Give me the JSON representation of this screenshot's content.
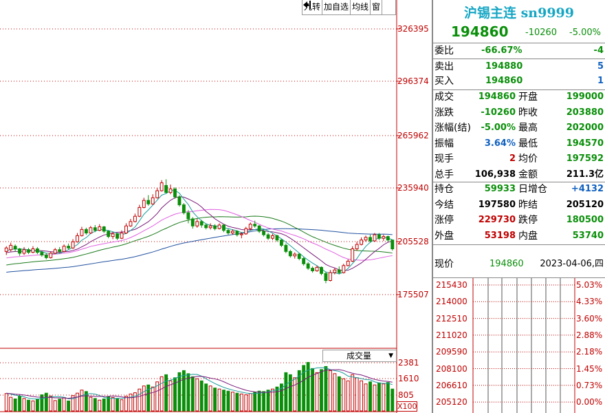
{
  "toolbar": {
    "items": [
      "九转",
      "加自选",
      "均线",
      "窗"
    ],
    "exit_icon": "exit-arrow-icon"
  },
  "price_axis": {
    "labels": [
      "326395",
      "296374",
      "265962",
      "235940",
      "205528",
      "175507"
    ]
  },
  "volume": {
    "selector_label": "成交量",
    "axis_labels": [
      "2381",
      "1610",
      "805"
    ],
    "multiplier": "X100"
  },
  "colors": {
    "up": "#c00000",
    "down": "#0a8f0a",
    "ma5": "#1a9a9a",
    "ma10": "#7a1a7a",
    "ma20": "#e060e0",
    "ma30": "#1a7a1a",
    "ma60": "#2050a0"
  },
  "quote": {
    "title": "沪锡主连 sn9999",
    "price": "194860",
    "change": "-10260",
    "change_pct": "-5.00%",
    "weibi_label": "委比",
    "weibi_pct": "-66.67%",
    "weibi_val": "-4",
    "sell_label": "卖出",
    "sell_price": "194880",
    "sell_vol": "5",
    "buy_label": "买入",
    "buy_price": "194860",
    "buy_vol": "1",
    "rows": [
      {
        "l1": "成交",
        "v1": "194860",
        "l2": "开盘",
        "v2": "199000",
        "c1": "g",
        "c2": "g"
      },
      {
        "l1": "涨跌",
        "v1": "-10260",
        "l2": "昨收",
        "v2": "203880",
        "c1": "g",
        "c2": "g"
      },
      {
        "l1": "涨幅(结)",
        "v1": "-5.00%",
        "l2": "最高",
        "v2": "202000",
        "c1": "g",
        "c2": "g"
      },
      {
        "l1": "振幅",
        "v1": "3.64%",
        "l2": "最低",
        "v2": "194570",
        "c1": "b",
        "c2": "g"
      },
      {
        "l1": "现手",
        "v1": "2",
        "l2": "均价",
        "v2": "197592",
        "c1": "r",
        "c2": "g"
      },
      {
        "l1": "总手",
        "v1": "106,938",
        "l2": "金额",
        "v2": "211.3亿",
        "c1": "k",
        "c2": "k"
      }
    ],
    "rows2": [
      {
        "l1": "持仓",
        "v1": "59933",
        "l2": "日增仓",
        "v2": "+4132",
        "c1": "g",
        "c2": "b"
      },
      {
        "l1": "今结",
        "v1": "197580",
        "l2": "昨结",
        "v2": "205120",
        "c1": "k",
        "c2": "k"
      },
      {
        "l1": "涨停",
        "v1": "229730",
        "l2": "跌停",
        "v2": "180500",
        "c1": "r",
        "c2": "g"
      },
      {
        "l1": "外盘",
        "v1": "53198",
        "l2": "内盘",
        "v2": "53740",
        "c1": "r",
        "c2": "g"
      }
    ],
    "current_label": "现价",
    "current_price": "194860",
    "date": "2023-04-06,四"
  },
  "timeline": {
    "prices": [
      "215430",
      "214000",
      "212510",
      "211020",
      "209590",
      "208100",
      "206610",
      "205120"
    ],
    "pcts": [
      "5.03%",
      "4.33%",
      "3.60%",
      "2.88%",
      "2.18%",
      "1.45%",
      "0.73%",
      "0.00%"
    ]
  },
  "chart_data": {
    "type": "candlestick",
    "y_axis_ticks": [
      326395,
      296374,
      265962,
      235940,
      205528,
      175507
    ],
    "volume_axis_ticks": [
      2381,
      1610,
      805
    ],
    "candles": [
      {
        "o": 200000,
        "c": 202000,
        "h": 203000,
        "l": 198000,
        "v": 880
      },
      {
        "o": 201000,
        "c": 203500,
        "h": 205000,
        "l": 200000,
        "v": 700
      },
      {
        "o": 203000,
        "c": 201500,
        "h": 204000,
        "l": 200000,
        "v": 620
      },
      {
        "o": 201500,
        "c": 199000,
        "h": 202000,
        "l": 197500,
        "v": 760
      },
      {
        "o": 199000,
        "c": 201000,
        "h": 202500,
        "l": 198000,
        "v": 640
      },
      {
        "o": 201000,
        "c": 199500,
        "h": 202000,
        "l": 198500,
        "v": 560
      },
      {
        "o": 199500,
        "c": 201500,
        "h": 203000,
        "l": 199000,
        "v": 520
      },
      {
        "o": 201500,
        "c": 199500,
        "h": 202500,
        "l": 198500,
        "v": 600
      },
      {
        "o": 199500,
        "c": 198000,
        "h": 200500,
        "l": 197000,
        "v": 820
      },
      {
        "o": 198000,
        "c": 196500,
        "h": 199000,
        "l": 195500,
        "v": 900
      },
      {
        "o": 196500,
        "c": 199000,
        "h": 200000,
        "l": 196000,
        "v": 760
      },
      {
        "o": 199000,
        "c": 201000,
        "h": 202000,
        "l": 198500,
        "v": 540
      },
      {
        "o": 201000,
        "c": 200000,
        "h": 202500,
        "l": 199000,
        "v": 610
      },
      {
        "o": 200000,
        "c": 203000,
        "h": 204000,
        "l": 199500,
        "v": 690
      },
      {
        "o": 203000,
        "c": 202000,
        "h": 204500,
        "l": 201000,
        "v": 520
      },
      {
        "o": 202000,
        "c": 205500,
        "h": 207000,
        "l": 201500,
        "v": 780
      },
      {
        "o": 205500,
        "c": 209000,
        "h": 210500,
        "l": 205000,
        "v": 900
      },
      {
        "o": 209000,
        "c": 212500,
        "h": 214000,
        "l": 208500,
        "v": 1050
      },
      {
        "o": 212500,
        "c": 210500,
        "h": 213500,
        "l": 209500,
        "v": 980
      },
      {
        "o": 210500,
        "c": 213500,
        "h": 214500,
        "l": 210000,
        "v": 700
      },
      {
        "o": 213500,
        "c": 212000,
        "h": 215000,
        "l": 211000,
        "v": 640
      },
      {
        "o": 212000,
        "c": 214000,
        "h": 215500,
        "l": 211500,
        "v": 560
      },
      {
        "o": 214000,
        "c": 211500,
        "h": 214500,
        "l": 210500,
        "v": 620
      },
      {
        "o": 211500,
        "c": 208500,
        "h": 212000,
        "l": 207500,
        "v": 720
      },
      {
        "o": 208500,
        "c": 210000,
        "h": 211000,
        "l": 207000,
        "v": 690
      },
      {
        "o": 210000,
        "c": 207500,
        "h": 210500,
        "l": 206500,
        "v": 640
      },
      {
        "o": 207500,
        "c": 210500,
        "h": 212000,
        "l": 207000,
        "v": 580
      },
      {
        "o": 210500,
        "c": 214500,
        "h": 216000,
        "l": 210000,
        "v": 750
      },
      {
        "o": 214500,
        "c": 217000,
        "h": 218500,
        "l": 214000,
        "v": 860
      },
      {
        "o": 217000,
        "c": 220000,
        "h": 221500,
        "l": 216500,
        "v": 920
      },
      {
        "o": 220000,
        "c": 225000,
        "h": 226500,
        "l": 219500,
        "v": 1100
      },
      {
        "o": 225000,
        "c": 229000,
        "h": 230500,
        "l": 224500,
        "v": 1250
      },
      {
        "o": 229000,
        "c": 227000,
        "h": 232000,
        "l": 226000,
        "v": 1300
      },
      {
        "o": 227000,
        "c": 230500,
        "h": 232500,
        "l": 226500,
        "v": 1200
      },
      {
        "o": 230500,
        "c": 234500,
        "h": 236000,
        "l": 230000,
        "v": 1450
      },
      {
        "o": 234500,
        "c": 239000,
        "h": 240500,
        "l": 234000,
        "v": 1700
      },
      {
        "o": 237500,
        "c": 233500,
        "h": 241000,
        "l": 233000,
        "v": 1800
      },
      {
        "o": 233500,
        "c": 235500,
        "h": 238000,
        "l": 232500,
        "v": 1500
      },
      {
        "o": 235500,
        "c": 231000,
        "h": 236500,
        "l": 230000,
        "v": 1650
      },
      {
        "o": 231000,
        "c": 226500,
        "h": 232000,
        "l": 225500,
        "v": 1900
      },
      {
        "o": 226500,
        "c": 222000,
        "h": 227500,
        "l": 221000,
        "v": 2000
      },
      {
        "o": 222000,
        "c": 218500,
        "h": 223500,
        "l": 216000,
        "v": 1850
      },
      {
        "o": 218500,
        "c": 214500,
        "h": 219500,
        "l": 213000,
        "v": 1700
      },
      {
        "o": 214500,
        "c": 217000,
        "h": 218500,
        "l": 213500,
        "v": 1600
      },
      {
        "o": 217000,
        "c": 215000,
        "h": 218000,
        "l": 213500,
        "v": 1500
      },
      {
        "o": 215000,
        "c": 213500,
        "h": 216000,
        "l": 212500,
        "v": 1350
      },
      {
        "o": 213500,
        "c": 214500,
        "h": 216000,
        "l": 212500,
        "v": 1250
      },
      {
        "o": 214500,
        "c": 213000,
        "h": 215500,
        "l": 212000,
        "v": 1150
      },
      {
        "o": 213000,
        "c": 215000,
        "h": 216000,
        "l": 212500,
        "v": 1100
      },
      {
        "o": 215000,
        "c": 212000,
        "h": 215500,
        "l": 211000,
        "v": 1050
      },
      {
        "o": 212000,
        "c": 210500,
        "h": 213000,
        "l": 209500,
        "v": 1000
      },
      {
        "o": 210500,
        "c": 211500,
        "h": 212500,
        "l": 209500,
        "v": 950
      },
      {
        "o": 211500,
        "c": 209500,
        "h": 212000,
        "l": 208500,
        "v": 900
      },
      {
        "o": 209500,
        "c": 210000,
        "h": 211000,
        "l": 207500,
        "v": 860
      },
      {
        "o": 210000,
        "c": 213000,
        "h": 214000,
        "l": 209500,
        "v": 820
      },
      {
        "o": 213000,
        "c": 215500,
        "h": 216500,
        "l": 212000,
        "v": 880
      },
      {
        "o": 215500,
        "c": 214500,
        "h": 217500,
        "l": 213500,
        "v": 940
      },
      {
        "o": 214500,
        "c": 211500,
        "h": 215000,
        "l": 210500,
        "v": 1000
      },
      {
        "o": 211500,
        "c": 209500,
        "h": 212500,
        "l": 208500,
        "v": 980
      },
      {
        "o": 209500,
        "c": 207500,
        "h": 210500,
        "l": 206500,
        "v": 1050
      },
      {
        "o": 207500,
        "c": 209000,
        "h": 210000,
        "l": 206500,
        "v": 1100
      },
      {
        "o": 209000,
        "c": 206500,
        "h": 209500,
        "l": 205500,
        "v": 1200
      },
      {
        "o": 206500,
        "c": 203500,
        "h": 207000,
        "l": 202500,
        "v": 1350
      },
      {
        "o": 203500,
        "c": 200000,
        "h": 204500,
        "l": 199000,
        "v": 1900
      },
      {
        "o": 200000,
        "c": 197500,
        "h": 201000,
        "l": 196500,
        "v": 1800
      },
      {
        "o": 197500,
        "c": 198500,
        "h": 199500,
        "l": 196000,
        "v": 1650
      },
      {
        "o": 198500,
        "c": 196000,
        "h": 199000,
        "l": 195000,
        "v": 2000
      },
      {
        "o": 196000,
        "c": 193000,
        "h": 197000,
        "l": 192000,
        "v": 2250
      },
      {
        "o": 193000,
        "c": 190500,
        "h": 194000,
        "l": 189500,
        "v": 2400
      },
      {
        "o": 190500,
        "c": 189000,
        "h": 191500,
        "l": 188000,
        "v": 2100
      },
      {
        "o": 189000,
        "c": 191000,
        "h": 192000,
        "l": 188500,
        "v": 1900
      },
      {
        "o": 191000,
        "c": 187500,
        "h": 191500,
        "l": 186500,
        "v": 2050
      },
      {
        "o": 187500,
        "c": 183500,
        "h": 188500,
        "l": 182000,
        "v": 2200
      },
      {
        "o": 183500,
        "c": 188000,
        "h": 189500,
        "l": 183000,
        "v": 2000
      },
      {
        "o": 188000,
        "c": 189500,
        "h": 190500,
        "l": 187000,
        "v": 1850
      },
      {
        "o": 189500,
        "c": 188000,
        "h": 191500,
        "l": 187000,
        "v": 1700
      },
      {
        "o": 188000,
        "c": 192000,
        "h": 193000,
        "l": 187500,
        "v": 1600
      },
      {
        "o": 192000,
        "c": 194500,
        "h": 195500,
        "l": 191500,
        "v": 1500
      },
      {
        "o": 194500,
        "c": 201500,
        "h": 203000,
        "l": 194000,
        "v": 1800
      },
      {
        "o": 201500,
        "c": 204000,
        "h": 205500,
        "l": 200500,
        "v": 1650
      },
      {
        "o": 204000,
        "c": 206500,
        "h": 208000,
        "l": 203500,
        "v": 1500
      },
      {
        "o": 206500,
        "c": 208000,
        "h": 209000,
        "l": 205500,
        "v": 1350
      },
      {
        "o": 208000,
        "c": 206000,
        "h": 209500,
        "l": 205000,
        "v": 1450
      },
      {
        "o": 206000,
        "c": 209500,
        "h": 210500,
        "l": 205500,
        "v": 1300
      },
      {
        "o": 209500,
        "c": 207500,
        "h": 210500,
        "l": 206500,
        "v": 1400
      },
      {
        "o": 207500,
        "c": 208500,
        "h": 209500,
        "l": 206000,
        "v": 1350
      },
      {
        "o": 208500,
        "c": 206500,
        "h": 209000,
        "l": 205500,
        "v": 1420
      },
      {
        "o": 206500,
        "c": 201500,
        "h": 206500,
        "l": 200500,
        "v": 1100
      }
    ]
  }
}
